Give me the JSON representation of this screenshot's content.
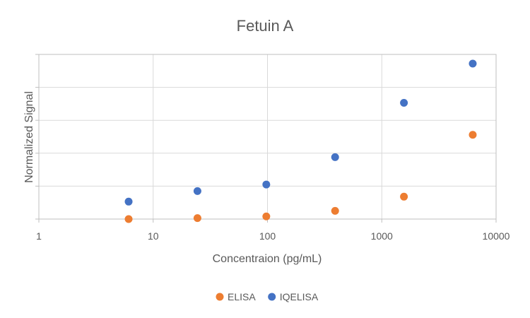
{
  "chart_data": {
    "type": "scatter",
    "title": "Fetuin A",
    "xlabel": "Concentraion (pg/mL)",
    "ylabel": "Normalized Signal",
    "x_scale": "log",
    "xlim": [
      1,
      10000
    ],
    "x_ticks": [
      "1",
      "10",
      "100",
      "1000",
      "10000"
    ],
    "ylim": [
      0,
      5
    ],
    "y_tick_labels_shown": false,
    "grid": true,
    "legend_position": "bottom",
    "series": [
      {
        "name": "ELISA",
        "color": "#ED7D31",
        "x": [
          6.1,
          24.4,
          97.7,
          390.6,
          1562.5,
          6250
        ],
        "y": [
          0.0,
          0.03,
          0.08,
          0.25,
          0.68,
          2.56
        ]
      },
      {
        "name": "IQELISA",
        "color": "#4472C4",
        "x": [
          6.1,
          24.4,
          97.7,
          390.6,
          1562.5,
          6250
        ],
        "y": [
          0.53,
          0.85,
          1.05,
          1.88,
          3.53,
          4.72
        ]
      }
    ]
  }
}
